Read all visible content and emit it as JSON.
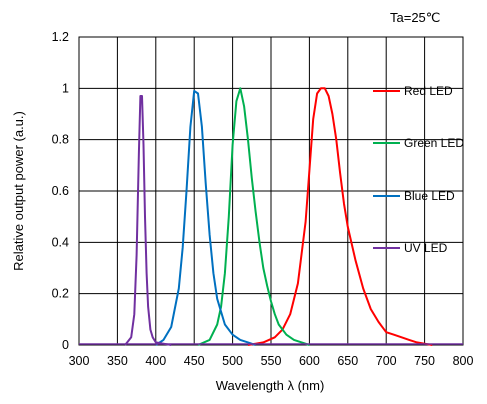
{
  "chart_data": {
    "type": "line",
    "title": "",
    "annotation": "Ta=25℃",
    "xlabel": "Wavelength λ  (nm)",
    "ylabel": "Relative output power (a.u.)",
    "xlim": [
      300,
      800
    ],
    "ylim": [
      0,
      1.2
    ],
    "xticks": [
      "300",
      "350",
      "400",
      "450",
      "500",
      "550",
      "600",
      "650",
      "700",
      "750",
      "800"
    ],
    "yticks": [
      "0",
      "0.2",
      "0.4",
      "0.6",
      "0.8",
      "1",
      "1.2"
    ],
    "grid": true,
    "legend_position": "right",
    "series": [
      {
        "name": "Red LED",
        "color": "#ff0000",
        "x": [
          520,
          540,
          555,
          565,
          575,
          585,
          595,
          600,
          605,
          610,
          615,
          620,
          625,
          630,
          635,
          640,
          645,
          650,
          660,
          670,
          680,
          690,
          700,
          710,
          720,
          730,
          740,
          750,
          760
        ],
        "y": [
          0,
          0.01,
          0.03,
          0.06,
          0.12,
          0.24,
          0.48,
          0.68,
          0.88,
          0.98,
          1.0,
          1.0,
          0.97,
          0.9,
          0.8,
          0.67,
          0.55,
          0.46,
          0.33,
          0.22,
          0.14,
          0.09,
          0.05,
          0.04,
          0.03,
          0.02,
          0.01,
          0.005,
          0
        ]
      },
      {
        "name": "Green LED",
        "color": "#00b050",
        "x": [
          455,
          470,
          480,
          485,
          490,
          495,
          500,
          505,
          510,
          515,
          520,
          525,
          530,
          535,
          540,
          545,
          550,
          555,
          560,
          570,
          580,
          590,
          600
        ],
        "y": [
          0,
          0.02,
          0.08,
          0.15,
          0.28,
          0.5,
          0.78,
          0.95,
          1.0,
          0.93,
          0.8,
          0.65,
          0.52,
          0.4,
          0.3,
          0.23,
          0.17,
          0.12,
          0.08,
          0.04,
          0.02,
          0.01,
          0
        ]
      },
      {
        "name": "Blue LED",
        "color": "#0070c0",
        "x": [
          400,
          410,
          420,
          430,
          435,
          440,
          445,
          450,
          455,
          460,
          465,
          470,
          475,
          480,
          490,
          500,
          510,
          520,
          530
        ],
        "y": [
          0,
          0.02,
          0.07,
          0.22,
          0.38,
          0.6,
          0.85,
          0.99,
          0.98,
          0.85,
          0.63,
          0.43,
          0.28,
          0.18,
          0.08,
          0.04,
          0.02,
          0.01,
          0
        ]
      },
      {
        "name": "UV  LED",
        "color": "#7030a0",
        "x": [
          360,
          368,
          372,
          375,
          378,
          380,
          382,
          384,
          386,
          388,
          390,
          393,
          396,
          400,
          410,
          420
        ],
        "y": [
          0,
          0.03,
          0.12,
          0.35,
          0.75,
          0.97,
          0.97,
          0.78,
          0.5,
          0.28,
          0.15,
          0.06,
          0.03,
          0.01,
          0.005,
          0
        ]
      }
    ]
  }
}
